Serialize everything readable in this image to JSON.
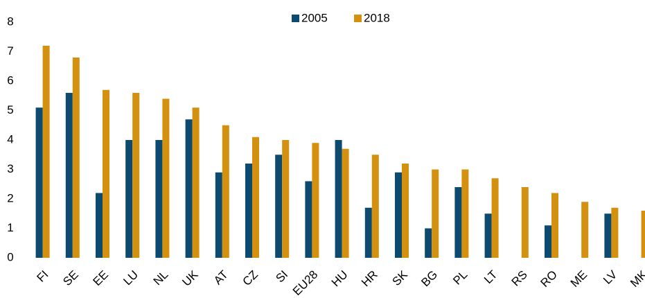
{
  "chart_data": {
    "type": "bar",
    "categories": [
      "FI",
      "SE",
      "EE",
      "LU",
      "NL",
      "UK",
      "AT",
      "CZ",
      "SI",
      "EU28",
      "HU",
      "HR",
      "SK",
      "BG",
      "PL",
      "LT",
      "RS",
      "RO",
      "ME",
      "LV",
      "MK"
    ],
    "series": [
      {
        "name": "2005",
        "color": "#0d4a70",
        "values": [
          5.1,
          5.6,
          2.2,
          4.0,
          4.0,
          4.7,
          2.9,
          3.2,
          3.5,
          2.6,
          4.0,
          1.7,
          2.9,
          1.0,
          2.4,
          1.5,
          null,
          1.1,
          null,
          1.5,
          null
        ]
      },
      {
        "name": "2018",
        "color": "#d4900f",
        "values": [
          7.2,
          6.8,
          5.7,
          5.6,
          5.4,
          5.1,
          4.5,
          4.1,
          4.0,
          3.9,
          3.7,
          3.5,
          3.2,
          3.0,
          3.0,
          2.7,
          2.4,
          2.2,
          1.9,
          1.7,
          1.6
        ]
      }
    ],
    "ylim": [
      0,
      8
    ],
    "yticks": [
      0,
      1,
      2,
      3,
      4,
      5,
      6,
      7,
      8
    ],
    "grid": false,
    "legend": "top"
  }
}
